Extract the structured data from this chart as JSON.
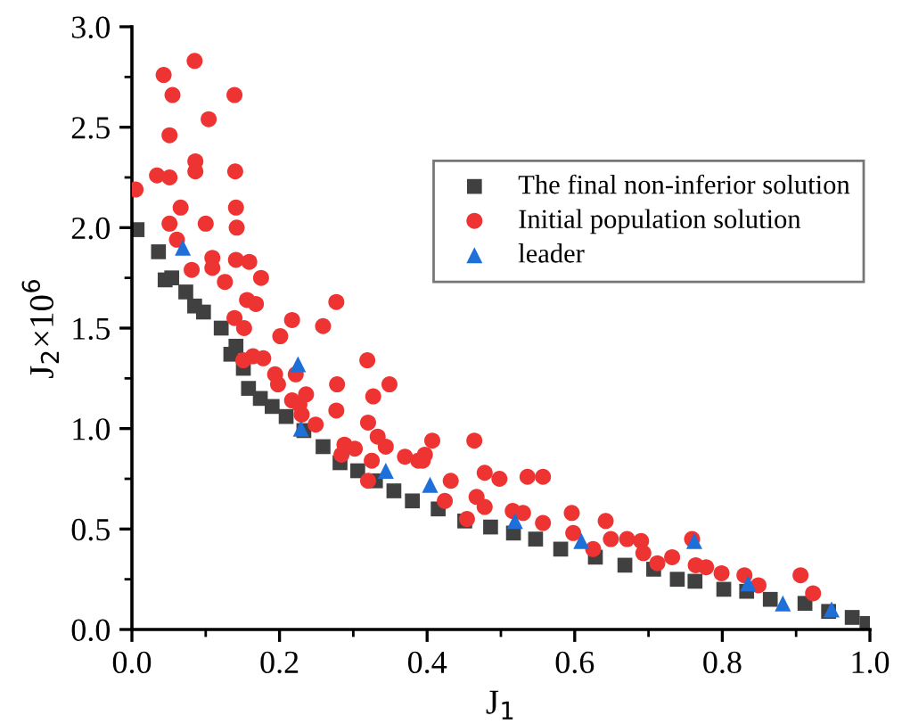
{
  "chart_data": {
    "type": "scatter",
    "xlabel": "J$_{1}$",
    "ylabel": "J$_{2}$×10$^{6}$",
    "xlim": [
      0,
      1.0
    ],
    "ylim": [
      0,
      3.0
    ],
    "xticks": [
      {
        "value": 0,
        "label": "0.0"
      },
      {
        "value": 0.2,
        "label": "0.2"
      },
      {
        "value": 0.4,
        "label": "0.4"
      },
      {
        "value": 0.6,
        "label": "0.6"
      },
      {
        "value": 0.8,
        "label": "0.8"
      },
      {
        "value": 1.0,
        "label": "1.0"
      }
    ],
    "yticks": [
      {
        "value": 0,
        "label": "0.0"
      },
      {
        "value": 0.5,
        "label": "0.5"
      },
      {
        "value": 1.0,
        "label": "1.0"
      },
      {
        "value": 1.5,
        "label": "1.5"
      },
      {
        "value": 2.0,
        "label": "2.0"
      },
      {
        "value": 2.5,
        "label": "2.5"
      },
      {
        "value": 3.0,
        "label": "3.0"
      }
    ],
    "grid": false,
    "legend": "top right",
    "series": [
      {
        "name": "The final non-inferior solution",
        "color": "#404040",
        "marker": "square",
        "x": [
          0.007,
          0.036,
          0.045,
          0.054,
          0.073,
          0.085,
          0.097,
          0.121,
          0.134,
          0.141,
          0.151,
          0.158,
          0.174,
          0.19,
          0.209,
          0.233,
          0.259,
          0.282,
          0.306,
          0.33,
          0.355,
          0.38,
          0.415,
          0.451,
          0.486,
          0.517,
          0.547,
          0.581,
          0.628,
          0.668,
          0.707,
          0.739,
          0.763,
          0.802,
          0.833,
          0.865,
          0.912,
          0.944,
          0.976,
          0.996
        ],
        "values": [
          1.99,
          1.88,
          1.74,
          1.75,
          1.68,
          1.61,
          1.58,
          1.5,
          1.37,
          1.41,
          1.3,
          1.2,
          1.15,
          1.11,
          1.06,
          0.99,
          0.91,
          0.83,
          0.79,
          0.74,
          0.69,
          0.64,
          0.6,
          0.54,
          0.51,
          0.48,
          0.45,
          0.4,
          0.36,
          0.32,
          0.3,
          0.25,
          0.24,
          0.2,
          0.19,
          0.15,
          0.13,
          0.09,
          0.06,
          0.03
        ]
      },
      {
        "name": "Initial population solution",
        "color": "#ee3333",
        "marker": "circle",
        "x": [
          0.005,
          0.043,
          0.085,
          0.055,
          0.051,
          0.104,
          0.139,
          0.034,
          0.051,
          0.086,
          0.086,
          0.14,
          0.066,
          0.141,
          0.051,
          0.1,
          0.142,
          0.061,
          0.109,
          0.109,
          0.081,
          0.141,
          0.159,
          0.126,
          0.175,
          0.156,
          0.168,
          0.277,
          0.139,
          0.152,
          0.217,
          0.259,
          0.201,
          0.164,
          0.178,
          0.151,
          0.194,
          0.198,
          0.222,
          0.278,
          0.319,
          0.349,
          0.217,
          0.236,
          0.227,
          0.23,
          0.277,
          0.249,
          0.327,
          0.32,
          0.333,
          0.344,
          0.288,
          0.302,
          0.284,
          0.325,
          0.37,
          0.388,
          0.32,
          0.394,
          0.397,
          0.407,
          0.424,
          0.432,
          0.464,
          0.467,
          0.478,
          0.478,
          0.454,
          0.498,
          0.536,
          0.557,
          0.516,
          0.53,
          0.557,
          0.596,
          0.598,
          0.625,
          0.642,
          0.649,
          0.671,
          0.69,
          0.693,
          0.712,
          0.732,
          0.764,
          0.759,
          0.778,
          0.799,
          0.83,
          0.849,
          0.906,
          0.923
        ],
        "values": [
          2.19,
          2.76,
          2.83,
          2.66,
          2.46,
          2.54,
          2.66,
          2.26,
          2.25,
          2.33,
          2.28,
          2.28,
          2.1,
          2.1,
          2.02,
          2.02,
          2.0,
          1.94,
          1.85,
          1.8,
          1.79,
          1.84,
          1.83,
          1.73,
          1.75,
          1.64,
          1.62,
          1.63,
          1.55,
          1.5,
          1.54,
          1.51,
          1.46,
          1.36,
          1.35,
          1.34,
          1.27,
          1.22,
          1.27,
          1.22,
          1.34,
          1.22,
          1.14,
          1.17,
          1.12,
          1.07,
          1.09,
          1.02,
          1.16,
          1.03,
          0.96,
          0.91,
          0.92,
          0.9,
          0.87,
          0.84,
          0.86,
          0.84,
          0.74,
          0.84,
          0.87,
          0.94,
          0.64,
          0.74,
          0.94,
          0.66,
          0.78,
          0.61,
          0.55,
          0.75,
          0.76,
          0.76,
          0.59,
          0.58,
          0.53,
          0.58,
          0.48,
          0.4,
          0.54,
          0.45,
          0.45,
          0.44,
          0.38,
          0.33,
          0.36,
          0.32,
          0.45,
          0.31,
          0.28,
          0.27,
          0.22,
          0.27,
          0.18
        ]
      },
      {
        "name": "leader",
        "color": "#1f6fd8",
        "marker": "triangle",
        "x": [
          0.069,
          0.225,
          0.229,
          0.344,
          0.404,
          0.519,
          0.609,
          0.762,
          0.835,
          0.882,
          0.948
        ],
        "values": [
          1.9,
          1.32,
          1.0,
          0.79,
          0.72,
          0.54,
          0.44,
          0.44,
          0.23,
          0.13,
          0.1
        ]
      }
    ]
  }
}
